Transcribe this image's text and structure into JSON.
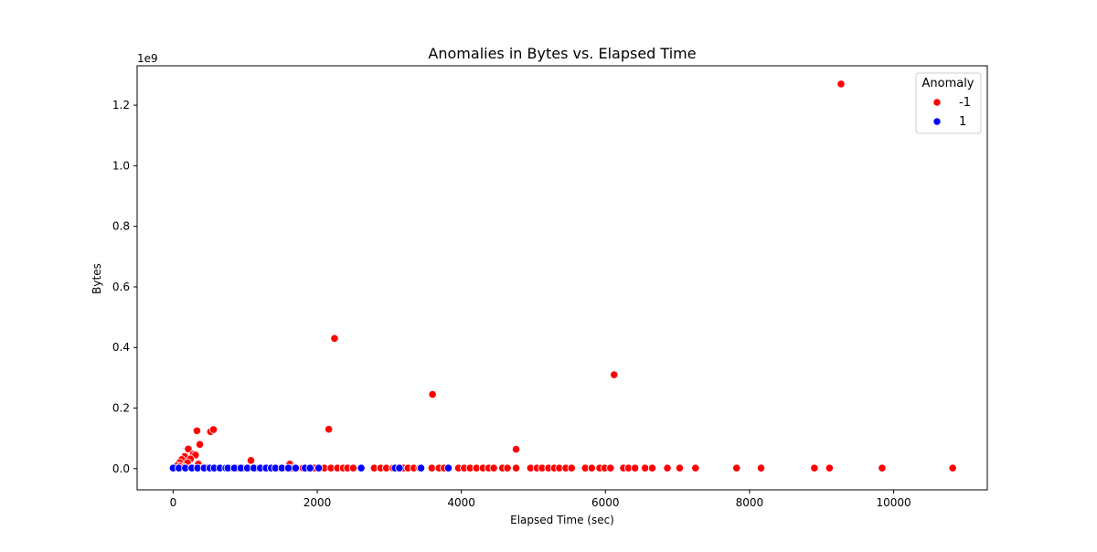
{
  "chart_data": {
    "type": "scatter",
    "title": "Anomalies in Bytes vs. Elapsed Time",
    "xlabel": "Elapsed Time (sec)",
    "ylabel": "Bytes",
    "y_offset_label": "1e9",
    "xlim": [
      -500,
      11300
    ],
    "ylim": [
      -0.07,
      1.33
    ],
    "x_ticks": [
      0,
      2000,
      4000,
      6000,
      8000,
      10000
    ],
    "x_tick_labels": [
      "0",
      "2000",
      "4000",
      "6000",
      "8000",
      "10000"
    ],
    "y_ticks": [
      0.0,
      0.2,
      0.4,
      0.6,
      0.8,
      1.0,
      1.2
    ],
    "y_tick_labels": [
      "0.0",
      "0.2",
      "0.4",
      "0.6",
      "0.8",
      "1.0",
      "1.2"
    ],
    "y_units": "1e9 Bytes",
    "grid": false,
    "legend": {
      "title": "Anomaly",
      "placement": "top-right",
      "entries": [
        {
          "label": "-1",
          "color": "#ff0000"
        },
        {
          "label": "1",
          "color": "#0000ff"
        }
      ]
    },
    "series": [
      {
        "name": "-1",
        "color": "#ff0000",
        "points": [
          [
            9270,
            1.27
          ],
          [
            2240,
            0.43
          ],
          [
            6120,
            0.31
          ],
          [
            3600,
            0.245
          ],
          [
            2160,
            0.13
          ],
          [
            4760,
            0.064
          ],
          [
            330,
            0.125
          ],
          [
            520,
            0.122
          ],
          [
            560,
            0.129
          ],
          [
            370,
            0.08
          ],
          [
            210,
            0.065
          ],
          [
            280,
            0.048
          ],
          [
            310,
            0.045
          ],
          [
            160,
            0.04
          ],
          [
            120,
            0.03
          ],
          [
            240,
            0.032
          ],
          [
            90,
            0.02
          ],
          [
            350,
            0.015
          ],
          [
            200,
            0.02
          ],
          [
            1080,
            0.027
          ],
          [
            60,
            0.01
          ],
          [
            100,
            0.008
          ],
          [
            150,
            0.005
          ],
          [
            260,
            0.004
          ],
          [
            420,
            0.004
          ],
          [
            470,
            0.003
          ],
          [
            650,
            0.003
          ],
          [
            720,
            0.002
          ],
          [
            820,
            0.002
          ],
          [
            900,
            0.002
          ],
          [
            980,
            0.002
          ],
          [
            1050,
            0.002
          ],
          [
            1180,
            0.002
          ],
          [
            1250,
            0.002
          ],
          [
            1320,
            0.002
          ],
          [
            1400,
            0.002
          ],
          [
            1480,
            0.002
          ],
          [
            1580,
            0.002
          ],
          [
            1620,
            0.015
          ],
          [
            1650,
            0.002
          ],
          [
            1720,
            0.002
          ],
          [
            1800,
            0.002
          ],
          [
            1880,
            0.002
          ],
          [
            1960,
            0.002
          ],
          [
            2100,
            0.002
          ],
          [
            2190,
            0.002
          ],
          [
            2280,
            0.002
          ],
          [
            2360,
            0.002
          ],
          [
            2420,
            0.002
          ],
          [
            2500,
            0.002
          ],
          [
            2790,
            0.002
          ],
          [
            2880,
            0.002
          ],
          [
            2960,
            0.002
          ],
          [
            3050,
            0.002
          ],
          [
            3200,
            0.002
          ],
          [
            3260,
            0.002
          ],
          [
            3340,
            0.002
          ],
          [
            3420,
            0.002
          ],
          [
            3590,
            0.002
          ],
          [
            3690,
            0.002
          ],
          [
            3760,
            0.002
          ],
          [
            3960,
            0.002
          ],
          [
            4040,
            0.002
          ],
          [
            4120,
            0.002
          ],
          [
            4210,
            0.002
          ],
          [
            4300,
            0.002
          ],
          [
            4380,
            0.002
          ],
          [
            4450,
            0.002
          ],
          [
            4570,
            0.002
          ],
          [
            4640,
            0.002
          ],
          [
            4760,
            0.002
          ],
          [
            4960,
            0.002
          ],
          [
            5050,
            0.002
          ],
          [
            5120,
            0.002
          ],
          [
            5210,
            0.002
          ],
          [
            5290,
            0.002
          ],
          [
            5360,
            0.002
          ],
          [
            5450,
            0.002
          ],
          [
            5530,
            0.002
          ],
          [
            5720,
            0.002
          ],
          [
            5810,
            0.002
          ],
          [
            5920,
            0.002
          ],
          [
            5990,
            0.002
          ],
          [
            6070,
            0.002
          ],
          [
            6250,
            0.002
          ],
          [
            6320,
            0.002
          ],
          [
            6410,
            0.002
          ],
          [
            6550,
            0.002
          ],
          [
            6650,
            0.002
          ],
          [
            6860,
            0.002
          ],
          [
            7030,
            0.002
          ],
          [
            7250,
            0.002
          ],
          [
            7820,
            0.002
          ],
          [
            8160,
            0.002
          ],
          [
            8900,
            0.002
          ],
          [
            9110,
            0.002
          ],
          [
            9840,
            0.002
          ],
          [
            10820,
            0.002
          ]
        ]
      },
      {
        "name": "1",
        "color": "#0000ff",
        "points": [
          [
            0,
            0.002
          ],
          [
            80,
            0.002
          ],
          [
            170,
            0.002
          ],
          [
            260,
            0.002
          ],
          [
            340,
            0.002
          ],
          [
            430,
            0.002
          ],
          [
            510,
            0.002
          ],
          [
            570,
            0.002
          ],
          [
            650,
            0.002
          ],
          [
            730,
            0.002
          ],
          [
            760,
            0.002
          ],
          [
            850,
            0.002
          ],
          [
            940,
            0.002
          ],
          [
            1030,
            0.002
          ],
          [
            1120,
            0.002
          ],
          [
            1210,
            0.002
          ],
          [
            1290,
            0.002
          ],
          [
            1360,
            0.002
          ],
          [
            1420,
            0.002
          ],
          [
            1510,
            0.002
          ],
          [
            1600,
            0.002
          ],
          [
            1700,
            0.002
          ],
          [
            1830,
            0.002
          ],
          [
            1900,
            0.002
          ],
          [
            2020,
            0.002
          ],
          [
            2610,
            0.002
          ],
          [
            3080,
            0.002
          ],
          [
            3140,
            0.002
          ],
          [
            3440,
            0.002
          ],
          [
            3820,
            0.002
          ]
        ]
      }
    ]
  }
}
